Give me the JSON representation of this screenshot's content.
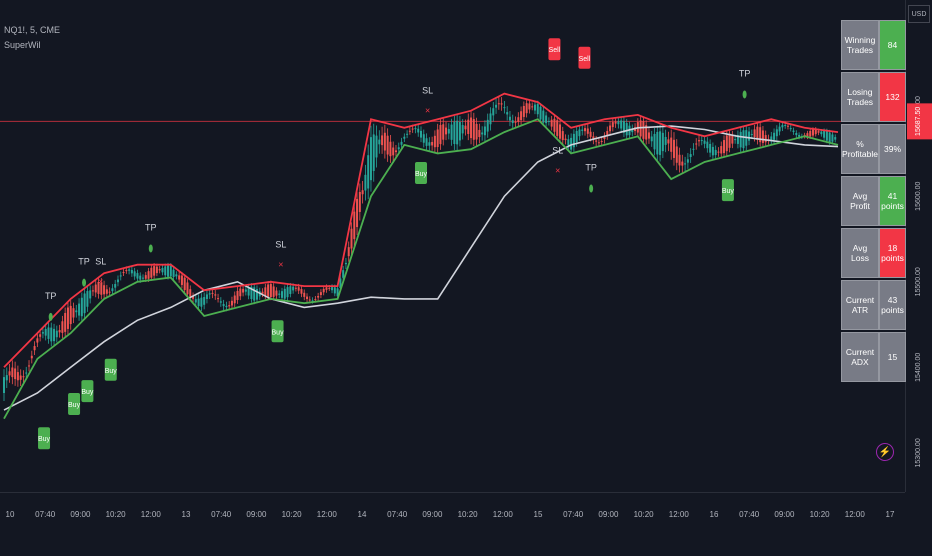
{
  "header": {
    "symbol_line": "NQ1!, 5, CME",
    "indicator_name": "SuperWil"
  },
  "currency_label": "USD",
  "stats_table": [
    {
      "label": "Winning Trades",
      "value": "84",
      "color": "#4caf50"
    },
    {
      "label": "Losing Trades",
      "value": "132",
      "color": "#f23645"
    },
    {
      "label": "% Profitable",
      "value": "39%",
      "color": "#787b86"
    },
    {
      "label": "Avg Profit",
      "value": "41 points",
      "color": "#4caf50"
    },
    {
      "label": "Avg Loss",
      "value": "18 points",
      "color": "#f23645"
    },
    {
      "label": "Current ATR",
      "value": "43 points",
      "color": "#787b86"
    },
    {
      "label": "Current ADX",
      "value": "15",
      "color": "#787b86"
    }
  ],
  "chart_data": {
    "type": "line",
    "price_axis": {
      "ticks": [
        15300,
        15400,
        15500,
        15600,
        15700
      ],
      "tick_labels": [
        "15300.00",
        "15400.00",
        "15500.00",
        "15600.00",
        "15700.00"
      ],
      "ylim": [
        15280,
        15820
      ]
    },
    "current_price": {
      "value": 15687.5,
      "label": "15687.50",
      "color": "#f23645"
    },
    "time_axis": {
      "tick_labels": [
        "10",
        "07:40",
        "09:00",
        "10:20",
        "12:00",
        "13",
        "07:40",
        "09:00",
        "10:20",
        "12:00",
        "14",
        "07:40",
        "09:00",
        "10:20",
        "12:00",
        "15",
        "07:40",
        "09:00",
        "10:20",
        "12:00",
        "16",
        "07:40",
        "09:00",
        "10:20",
        "12:00",
        "17"
      ]
    },
    "n_bars": 26,
    "series": [
      {
        "name": "SuperWil",
        "color": "#d1d4dc",
        "values": [
          15350,
          15370,
          15400,
          15430,
          15455,
          15470,
          15490,
          15500,
          15480,
          15470,
          15475,
          15482,
          15480,
          15480,
          15540,
          15600,
          15640,
          15660,
          15670,
          15680,
          15682,
          15678,
          15670,
          15665,
          15660,
          15658
        ]
      },
      {
        "color": "#4caf50",
        "values": [
          15340,
          15410,
          15440,
          15480,
          15500,
          15505,
          15460,
          15470,
          15480,
          15475,
          15480,
          15600,
          15660,
          15650,
          15655,
          15675,
          15690,
          15650,
          15660,
          15670,
          15620,
          15640,
          15650,
          15660,
          15670,
          15660
        ]
      },
      {
        "color": "#f23645",
        "values": [
          15400,
          15440,
          15480,
          15510,
          15520,
          15520,
          15490,
          15495,
          15500,
          15495,
          15495,
          15690,
          15680,
          15690,
          15700,
          15720,
          15710,
          15680,
          15690,
          15695,
          15680,
          15670,
          15680,
          15690,
          15680,
          15675
        ]
      }
    ],
    "signals": [
      {
        "bar": 1.2,
        "type": "Buy",
        "price": 15330
      },
      {
        "bar": 2.1,
        "type": "Buy",
        "price": 15370
      },
      {
        "bar": 2.5,
        "type": "Buy",
        "price": 15385
      },
      {
        "bar": 3.2,
        "type": "Buy",
        "price": 15410
      },
      {
        "bar": 8.2,
        "type": "Buy",
        "price": 15455
      },
      {
        "bar": 12.5,
        "type": "Buy",
        "price": 15640
      },
      {
        "bar": 21.7,
        "type": "Buy",
        "price": 15620
      },
      {
        "bar": 16.5,
        "type": "Sell",
        "price": 15780
      },
      {
        "bar": 17.4,
        "type": "Sell",
        "price": 15770
      },
      {
        "bar": 1.4,
        "type": "TP",
        "price": 15480
      },
      {
        "bar": 2.4,
        "type": "TP",
        "price": 15520
      },
      {
        "bar": 4.4,
        "type": "TP",
        "price": 15560
      },
      {
        "bar": 17.6,
        "type": "TP",
        "price": 15630
      },
      {
        "bar": 22.2,
        "type": "TP",
        "price": 15740
      },
      {
        "bar": 2.9,
        "type": "SL",
        "price": 15520
      },
      {
        "bar": 8.3,
        "type": "SL",
        "price": 15540
      },
      {
        "bar": 12.7,
        "type": "SL",
        "price": 15720
      },
      {
        "bar": 16.6,
        "type": "SL",
        "price": 15650
      }
    ],
    "grid": false
  }
}
